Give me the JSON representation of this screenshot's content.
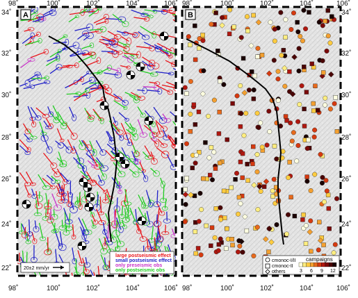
{
  "panels": [
    {
      "id": "A",
      "label": "A"
    },
    {
      "id": "B",
      "label": "B"
    }
  ],
  "axes": {
    "lon_labels": [
      "98˚",
      "100˚",
      "102˚",
      "104˚",
      "106˚"
    ],
    "lat_labels": [
      "34˚",
      "32˚",
      "30˚",
      "28˚",
      "26˚",
      "24˚",
      "22˚"
    ],
    "lon_range": [
      98,
      106
    ],
    "lat_range": [
      21.5,
      34
    ]
  },
  "legend_a": {
    "items": [
      {
        "label": "large postseismic effect",
        "color": "#e8141a"
      },
      {
        "label": "small postseismic effect",
        "color": "#2020c8"
      },
      {
        "label": "only preseismic obs",
        "color": "#c832c8"
      },
      {
        "label": "only postseismic obs",
        "color": "#22cc22"
      }
    ],
    "scale_label": "20±2 mm/yr"
  },
  "legend_b": {
    "symbols": [
      {
        "label": "cmonoc-I/II",
        "shape": "circle"
      },
      {
        "label": "cmonoc-II",
        "shape": "square"
      },
      {
        "label": "others",
        "shape": "diamond"
      }
    ],
    "colorbar_title": "campaigns",
    "colorbar_ticks": [
      "3",
      "6",
      "9",
      "12"
    ],
    "colorbar_colors": [
      "#ffffe0",
      "#ffee80",
      "#ffcc40",
      "#f4a030",
      "#e86a1c",
      "#d63a10",
      "#b01810",
      "#7a0a0a",
      "#4a0505",
      "#1a0000"
    ]
  },
  "colors": {
    "fault": "#000000",
    "frame": "#000000"
  }
}
